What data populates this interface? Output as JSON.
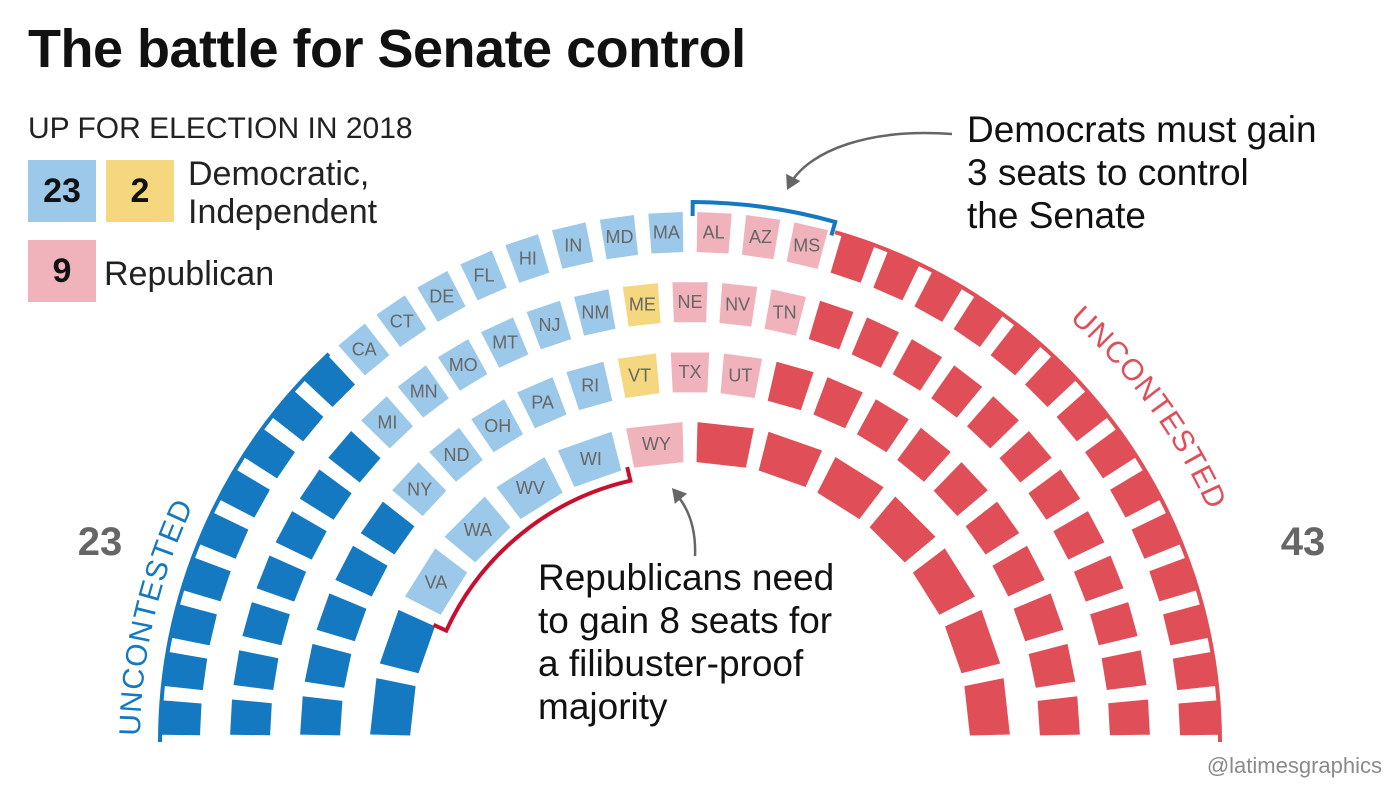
{
  "title": "The battle for Senate control",
  "legend": {
    "heading": "UP FOR ELECTION IN 2018",
    "dem_count": "23",
    "ind_count": "2",
    "dem_ind_label_line1": "Democratic,",
    "dem_ind_label_line2": "Independent",
    "rep_count": "9",
    "rep_label": "Republican"
  },
  "annotations": {
    "top_note": [
      "Democrats must gain",
      "3 seats to control",
      "the Senate"
    ],
    "bottom_note": [
      "Republicans need",
      "to gain 8 seats for",
      "a filibuster-proof",
      "majority"
    ]
  },
  "credit": "@latimesgraphics",
  "colors": {
    "dem_uncontested": "#1479c1",
    "dem_up": "#9cc9e9",
    "ind_up": "#f5d780",
    "rep_up": "#f1b3bb",
    "rep_uncontested": "#e04e58",
    "label_text": "#666666",
    "red_bracket": "#c8102e"
  },
  "chart_data": {
    "type": "parliament",
    "title": "The battle for Senate control",
    "total_seats": 100,
    "counts": {
      "dem_uncontested": 23,
      "dem_up": 23,
      "ind_up": 2,
      "rep_up": 9,
      "rep_uncontested": 43
    },
    "side_labels": {
      "left_number": "23",
      "left_text": "UNCONTESTED",
      "right_number": "43",
      "right_text": "UNCONTESTED"
    },
    "rows": [
      {
        "seats": [
          "D",
          "D",
          "D",
          "D",
          "D",
          "D",
          "D",
          "D",
          "D",
          "CA",
          "CT",
          "DE",
          "FL",
          "HI",
          "IN",
          "MD",
          "MA",
          "AL",
          "AZ",
          "MS",
          "R",
          "R",
          "R",
          "R",
          "R",
          "R",
          "R",
          "R",
          "R",
          "R",
          "R",
          "R",
          "R",
          "R"
        ],
        "types": [
          "du",
          "du",
          "du",
          "du",
          "du",
          "du",
          "du",
          "du",
          "du",
          "dup",
          "dup",
          "dup",
          "dup",
          "dup",
          "dup",
          "dup",
          "dup",
          "rup",
          "rup",
          "rup",
          "ru",
          "ru",
          "ru",
          "ru",
          "ru",
          "ru",
          "ru",
          "ru",
          "ru",
          "ru",
          "ru",
          "ru",
          "ru",
          "ru"
        ]
      },
      {
        "seats": [
          "D",
          "D",
          "D",
          "D",
          "D",
          "D",
          "D",
          "MI",
          "MN",
          "MO",
          "MT",
          "NJ",
          "NM",
          "ME",
          "NE",
          "NV",
          "TN",
          "R",
          "R",
          "R",
          "R",
          "R",
          "R",
          "R",
          "R",
          "R",
          "R",
          "R",
          "R"
        ],
        "types": [
          "du",
          "du",
          "du",
          "du",
          "du",
          "du",
          "du",
          "dup",
          "dup",
          "dup",
          "dup",
          "dup",
          "dup",
          "iup",
          "rup",
          "rup",
          "rup",
          "ru",
          "ru",
          "ru",
          "ru",
          "ru",
          "ru",
          "ru",
          "ru",
          "ru",
          "ru",
          "ru",
          "ru"
        ]
      },
      {
        "seats": [
          "D",
          "D",
          "D",
          "D",
          "D",
          "NY",
          "ND",
          "OH",
          "PA",
          "RI",
          "VT",
          "TX",
          "UT",
          "R",
          "R",
          "R",
          "R",
          "R",
          "R",
          "R",
          "R",
          "R",
          "R"
        ],
        "types": [
          "du",
          "du",
          "du",
          "du",
          "du",
          "dup",
          "dup",
          "dup",
          "dup",
          "dup",
          "iup",
          "rup",
          "rup",
          "ru",
          "ru",
          "ru",
          "ru",
          "ru",
          "ru",
          "ru",
          "ru",
          "ru",
          "ru"
        ]
      },
      {
        "seats": [
          "D",
          "D",
          "VA",
          "WA",
          "WV",
          "WI",
          "WY",
          "R",
          "R",
          "R",
          "R",
          "R",
          "R",
          "R"
        ],
        "types": [
          "du",
          "du",
          "dup",
          "dup",
          "dup",
          "dup",
          "rup",
          "ru",
          "ru",
          "ru",
          "ru",
          "ru",
          "ru",
          "ru"
        ]
      }
    ]
  }
}
